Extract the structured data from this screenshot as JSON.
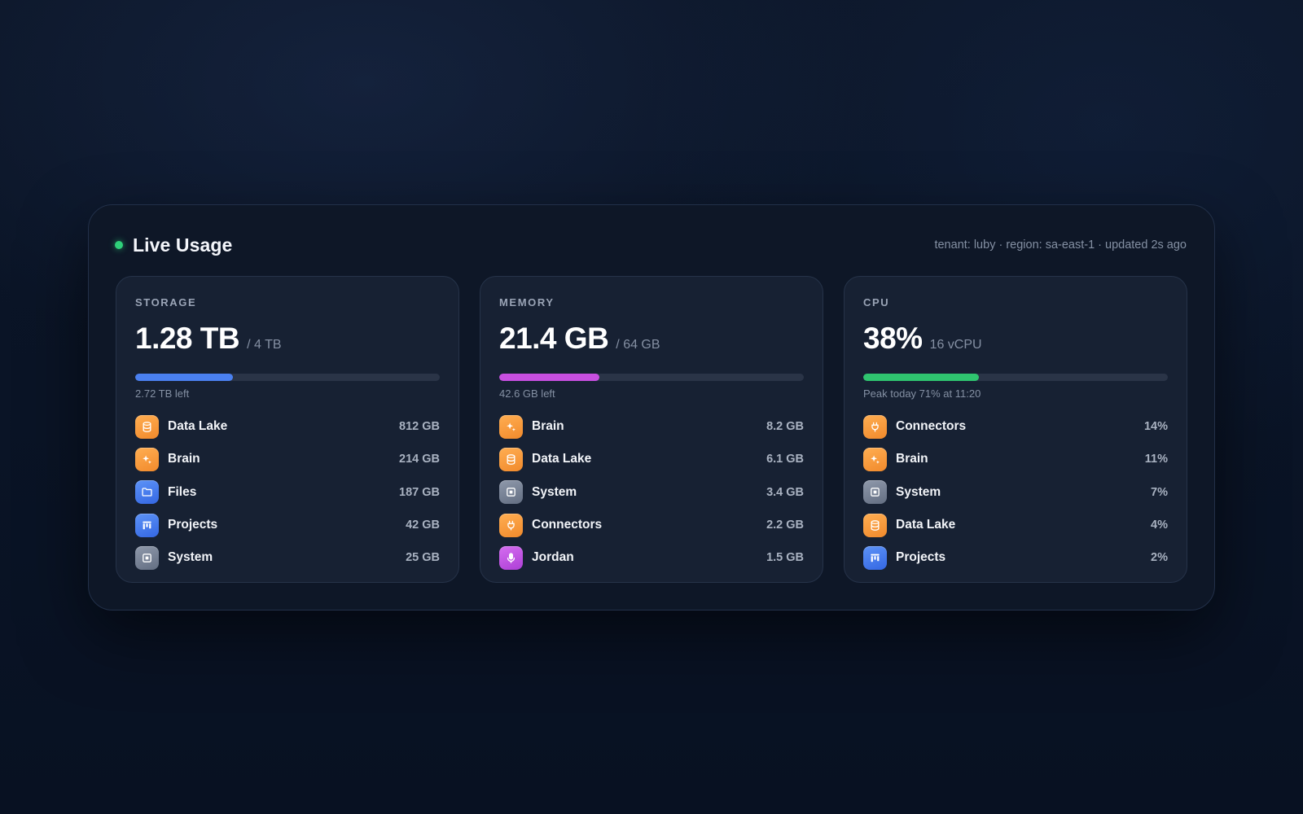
{
  "header": {
    "title": "Live Usage",
    "meta": "tenant: luby · region: sa-east-1 · updated 2s ago",
    "status_color": "#2fd17a"
  },
  "cards": [
    {
      "label": "STORAGE",
      "value": "1.28 TB",
      "sub": "/ 4 TB",
      "progress_fraction": 0.32,
      "bar_color": "#4a80f0",
      "note": "2.72 TB left",
      "items": [
        {
          "name": "Data Lake",
          "value": "812 GB",
          "icon": "database-icon",
          "color": "orange"
        },
        {
          "name": "Brain",
          "value": "214 GB",
          "icon": "sparkle-icon",
          "color": "orange"
        },
        {
          "name": "Files",
          "value": "187 GB",
          "icon": "folder-icon",
          "color": "blue"
        },
        {
          "name": "Projects",
          "value": "42 GB",
          "icon": "kanban-icon",
          "color": "blue"
        },
        {
          "name": "System",
          "value": "25 GB",
          "icon": "chip-icon",
          "color": "gray"
        }
      ]
    },
    {
      "label": "MEMORY",
      "value": "21.4 GB",
      "sub": "/ 64 GB",
      "progress_fraction": 0.33,
      "bar_color": "#c84fe0",
      "note": "42.6 GB left",
      "items": [
        {
          "name": "Brain",
          "value": "8.2 GB",
          "icon": "sparkle-icon",
          "color": "orange"
        },
        {
          "name": "Data Lake",
          "value": "6.1 GB",
          "icon": "database-icon",
          "color": "orange"
        },
        {
          "name": "System",
          "value": "3.4 GB",
          "icon": "chip-icon",
          "color": "gray"
        },
        {
          "name": "Connectors",
          "value": "2.2 GB",
          "icon": "plug-icon",
          "color": "orange"
        },
        {
          "name": "Jordan",
          "value": "1.5 GB",
          "icon": "microphone-icon",
          "color": "purple"
        }
      ]
    },
    {
      "label": "CPU",
      "value": "38%",
      "sub": "16 vCPU",
      "progress_fraction": 0.38,
      "bar_color": "#2fc46f",
      "note": "Peak today 71% at 11:20",
      "items": [
        {
          "name": "Connectors",
          "value": "14%",
          "icon": "plug-icon",
          "color": "orange"
        },
        {
          "name": "Brain",
          "value": "11%",
          "icon": "sparkle-icon",
          "color": "orange"
        },
        {
          "name": "System",
          "value": "7%",
          "icon": "chip-icon",
          "color": "gray"
        },
        {
          "name": "Data Lake",
          "value": "4%",
          "icon": "database-icon",
          "color": "orange"
        },
        {
          "name": "Projects",
          "value": "2%",
          "icon": "kanban-icon",
          "color": "blue"
        }
      ]
    }
  ]
}
